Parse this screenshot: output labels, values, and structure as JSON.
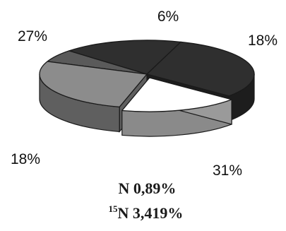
{
  "chart_data": {
    "type": "pie",
    "style": "3d-exploded",
    "slices": [
      {
        "label": "6%",
        "value": 6,
        "color": "#5a5a5a",
        "side_color": "#3a3a3a"
      },
      {
        "label": "18%",
        "value": 18,
        "color": "#2f2f2f",
        "side_color": "#1d1d1d"
      },
      {
        "label": "31%",
        "value": 31,
        "color": "#2f2f2f",
        "side_color": "#1d1d1d"
      },
      {
        "label": "18%",
        "value": 18,
        "color": "#ffffff",
        "side_color": "#8a8a8a"
      },
      {
        "label": "27%",
        "value": 27,
        "color": "#8c8c8c",
        "side_color": "#5f5f5f"
      }
    ],
    "edge_color": "#1a1a1a",
    "legend": "none"
  },
  "caption": {
    "line1": "N 0,89%",
    "line2_superscript": "15",
    "line2_text": "N 3,419%"
  }
}
